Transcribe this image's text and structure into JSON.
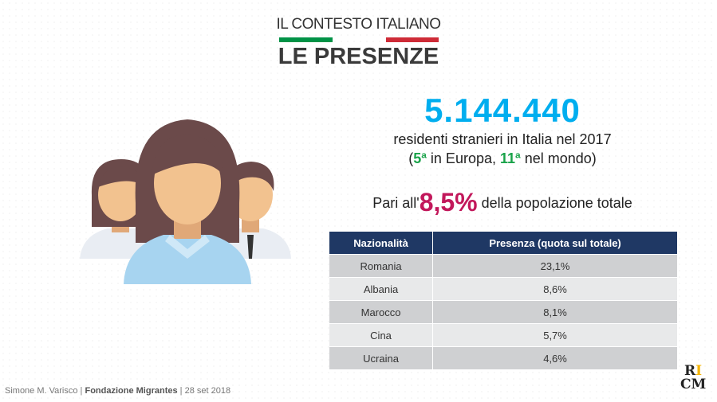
{
  "header": {
    "subtitle": "IL CONTESTO ITALIANO",
    "title": "LE PRESENZE"
  },
  "stats": {
    "total": "5.144.440",
    "description": "residenti stranieri in Italia nel 2017",
    "rank_open": "(",
    "rank_europe": "5ª",
    "rank_europe_text": " in Europa, ",
    "rank_world": "11ª",
    "rank_world_text": " nel mondo)",
    "share_prefix": "Pari all'",
    "share_value": "8,5%",
    "share_suffix": " della popolazione totale"
  },
  "table": {
    "headers": [
      "Nazionalità",
      "Presenza (quota sul totale)"
    ],
    "rows": [
      {
        "country": "Romania",
        "share": "23,1%"
      },
      {
        "country": "Albania",
        "share": "8,6%"
      },
      {
        "country": "Marocco",
        "share": "8,1%"
      },
      {
        "country": "Cina",
        "share": "5,7%"
      },
      {
        "country": "Ucraina",
        "share": "4,6%"
      }
    ]
  },
  "footer": {
    "author": "Simone M. Varisco",
    "sep1": " | ",
    "org": "Fondazione Migrantes",
    "sep2": " | ",
    "date": "28 set 2018"
  },
  "logo": {
    "text": "RICM"
  },
  "colors": {
    "accent": "#00aeef",
    "highlight": "#c2185b",
    "rank": "#1aa34a",
    "table_header": "#1f3864"
  }
}
